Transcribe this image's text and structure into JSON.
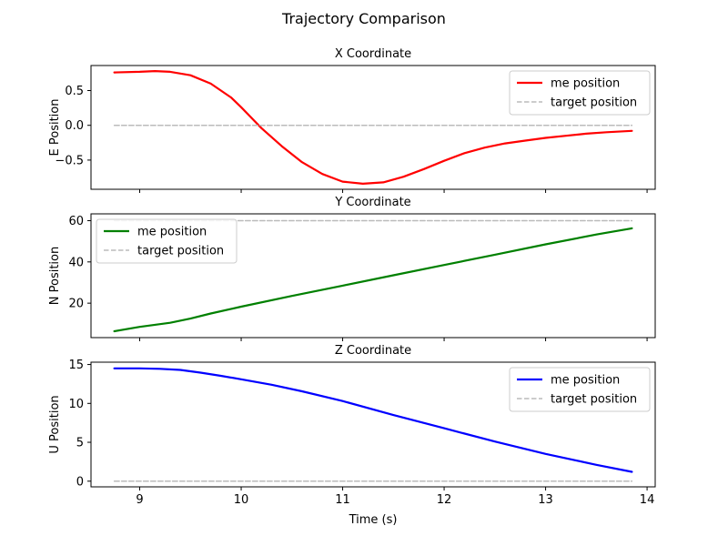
{
  "figure_title": "Trajectory Comparison",
  "xlabel": "Time (s)",
  "chart_data": [
    {
      "type": "line",
      "title": "X Coordinate",
      "xlabel": "Time (s)",
      "ylabel": "E Position",
      "xlim": [
        8.52,
        14.08
      ],
      "ylim": [
        -0.92,
        0.86
      ],
      "xticks": [
        9,
        10,
        11,
        12,
        13,
        14
      ],
      "yticks": [
        -0.5,
        0.0,
        0.5
      ],
      "ytick_labels": [
        "−0.5",
        "0.0",
        "0.5"
      ],
      "grid": false,
      "legend_position": "upper-right",
      "series": [
        {
          "name": "me position",
          "color": "#ff0000",
          "style": "solid",
          "x": [
            8.75,
            9.0,
            9.15,
            9.3,
            9.5,
            9.7,
            9.9,
            10.0,
            10.2,
            10.4,
            10.6,
            10.8,
            11.0,
            11.2,
            11.4,
            11.6,
            11.8,
            12.0,
            12.2,
            12.4,
            12.6,
            12.8,
            13.0,
            13.2,
            13.4,
            13.6,
            13.85
          ],
          "y": [
            0.76,
            0.77,
            0.78,
            0.77,
            0.72,
            0.6,
            0.4,
            0.26,
            -0.04,
            -0.3,
            -0.53,
            -0.7,
            -0.81,
            -0.84,
            -0.82,
            -0.74,
            -0.63,
            -0.51,
            -0.4,
            -0.32,
            -0.26,
            -0.22,
            -0.18,
            -0.15,
            -0.12,
            -0.1,
            -0.08
          ]
        },
        {
          "name": "target position",
          "color": "#bbbbbb",
          "style": "dashed",
          "x": [
            8.75,
            13.85
          ],
          "y": [
            0,
            0
          ]
        }
      ]
    },
    {
      "type": "line",
      "title": "Y Coordinate",
      "xlabel": "Time (s)",
      "ylabel": "N Position",
      "xlim": [
        8.52,
        14.08
      ],
      "ylim": [
        3.3,
        63.3
      ],
      "xticks": [
        9,
        10,
        11,
        12,
        13,
        14
      ],
      "yticks": [
        20,
        40,
        60
      ],
      "ytick_labels": [
        "20",
        "40",
        "60"
      ],
      "grid": false,
      "legend_position": "upper-left",
      "series": [
        {
          "name": "me position",
          "color": "#008000",
          "style": "solid",
          "x": [
            8.75,
            9.0,
            9.3,
            9.5,
            9.7,
            10.0,
            10.5,
            11.0,
            11.5,
            12.0,
            12.5,
            13.0,
            13.5,
            13.85
          ],
          "y": [
            6.4,
            8.5,
            10.5,
            12.5,
            15.0,
            18.3,
            23.5,
            28.5,
            33.5,
            38.5,
            43.5,
            48.5,
            53.3,
            56.3
          ]
        },
        {
          "name": "target position",
          "color": "#bbbbbb",
          "style": "dashed",
          "x": [
            8.75,
            13.85
          ],
          "y": [
            60,
            60
          ]
        }
      ]
    },
    {
      "type": "line",
      "title": "Z Coordinate",
      "xlabel": "Time (s)",
      "ylabel": "U Position",
      "xlim": [
        8.52,
        14.08
      ],
      "ylim": [
        -0.73,
        15.3
      ],
      "xticks": [
        9,
        10,
        11,
        12,
        13,
        14
      ],
      "yticks": [
        0,
        5,
        10,
        15
      ],
      "ytick_labels": [
        "0",
        "5",
        "10",
        "15"
      ],
      "grid": false,
      "legend_position": "upper-right",
      "series": [
        {
          "name": "me position",
          "color": "#0000ff",
          "style": "solid",
          "x": [
            8.75,
            9.0,
            9.2,
            9.4,
            9.6,
            9.8,
            10.0,
            10.3,
            10.6,
            11.0,
            11.5,
            12.0,
            12.5,
            13.0,
            13.5,
            13.85
          ],
          "y": [
            14.5,
            14.5,
            14.45,
            14.3,
            13.95,
            13.55,
            13.1,
            12.4,
            11.55,
            10.3,
            8.5,
            6.8,
            5.1,
            3.5,
            2.1,
            1.2
          ]
        },
        {
          "name": "target position",
          "color": "#bbbbbb",
          "style": "dashed",
          "x": [
            8.75,
            13.85
          ],
          "y": [
            0,
            0
          ]
        }
      ]
    }
  ]
}
